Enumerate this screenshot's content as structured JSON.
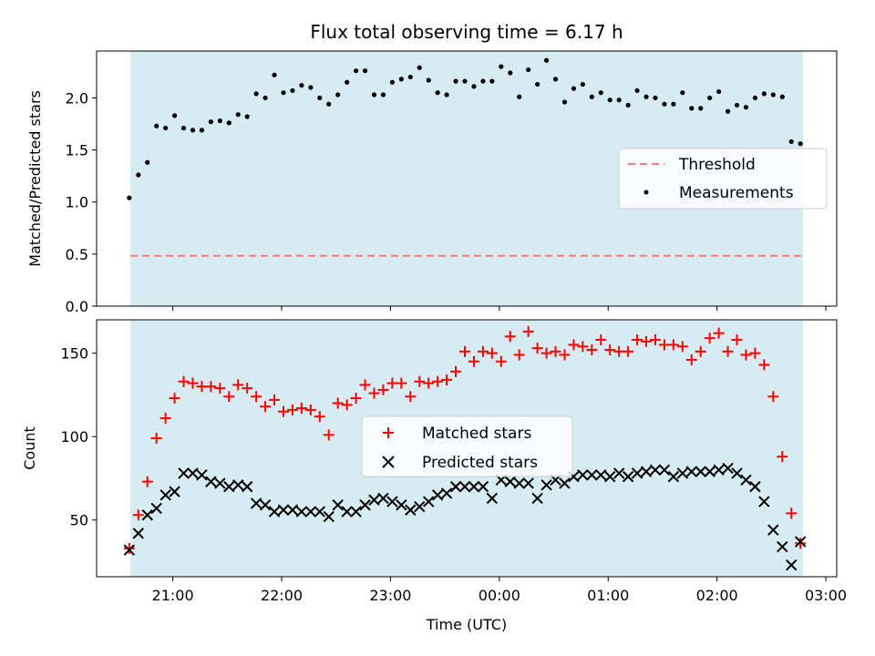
{
  "title": "Flux total observing time = 6.17 h",
  "chart_data": [
    {
      "type": "scatter",
      "panel": "top",
      "ylabel": "Matched/Predicted stars",
      "ylim": [
        0,
        2.45
      ],
      "yticks": [
        0.0,
        0.5,
        1.0,
        1.5,
        2.0
      ],
      "ytick_labels": [
        "0.0",
        "0.5",
        "1.0",
        "1.5",
        "2.0"
      ],
      "threshold": 0.5,
      "legend_placement": "center-right",
      "series": [
        {
          "name": "Threshold",
          "kind": "dashed-line",
          "color": "#f08080"
        },
        {
          "name": "Measurements",
          "kind": "points",
          "color": "#000000",
          "values": [
            1.04,
            1.26,
            1.38,
            1.73,
            1.71,
            1.83,
            1.71,
            1.69,
            1.69,
            1.77,
            1.78,
            1.76,
            1.84,
            1.82,
            2.04,
            2.0,
            2.22,
            2.05,
            2.07,
            2.12,
            2.1,
            2.0,
            1.94,
            2.03,
            2.15,
            2.26,
            2.26,
            2.03,
            2.03,
            2.15,
            2.18,
            2.2,
            2.29,
            2.17,
            2.05,
            2.03,
            2.16,
            2.16,
            2.11,
            2.16,
            2.16,
            2.3,
            2.24,
            2.01,
            2.27,
            2.13,
            2.36,
            2.18,
            1.96,
            2.09,
            2.13,
            2.01,
            2.05,
            1.98,
            1.98,
            1.93,
            2.07,
            2.01,
            2.0,
            1.94,
            1.94,
            2.05,
            1.9,
            1.9,
            2.0,
            2.06,
            1.87,
            1.93,
            1.91,
            2.0,
            2.04,
            2.03,
            2.01,
            1.58,
            1.56
          ]
        }
      ]
    },
    {
      "type": "scatter",
      "panel": "bottom",
      "ylabel": "Count",
      "xlabel": "Time (UTC)",
      "ylim": [
        16,
        170
      ],
      "yticks": [
        50,
        100,
        150
      ],
      "ytick_labels": [
        "50",
        "100",
        "150"
      ],
      "xlim": [
        "20:18",
        "03:06"
      ],
      "xticks": [
        "21:00",
        "22:00",
        "23:00",
        "00:00",
        "01:00",
        "02:00",
        "03:00"
      ],
      "shaded_range": [
        "20:36",
        "02:46"
      ],
      "legend_placement": "center",
      "x": [
        0,
        5,
        10,
        15,
        20,
        25,
        30,
        35,
        40,
        45,
        50,
        55,
        60,
        65,
        70,
        75,
        80,
        85,
        90,
        95,
        100,
        105,
        110,
        115,
        120,
        125,
        130,
        135,
        140,
        145,
        150,
        155,
        160,
        165,
        170,
        175,
        180,
        185,
        190,
        195,
        200,
        205,
        210,
        215,
        220,
        225,
        230,
        235,
        240,
        245,
        250,
        255,
        260,
        265,
        270,
        275,
        280,
        285,
        290,
        295,
        300,
        305,
        310,
        315,
        320,
        325,
        330,
        335,
        340,
        345,
        350,
        355,
        360,
        365,
        370
      ],
      "x_units": "minutes after 20:36 UTC",
      "series": [
        {
          "name": "Matched stars",
          "marker": "+",
          "color": "#ff0000",
          "values": [
            33,
            53,
            73,
            99,
            111,
            123,
            133,
            132,
            130,
            130,
            129,
            124,
            131,
            129,
            124,
            118,
            122,
            115,
            116,
            117,
            116,
            112,
            101,
            120,
            119,
            123,
            131,
            126,
            128,
            132,
            132,
            124,
            133,
            132,
            133,
            134,
            139,
            151,
            145,
            151,
            150,
            145,
            160,
            149,
            163,
            153,
            150,
            151,
            149,
            155,
            154,
            152,
            158,
            152,
            151,
            151,
            158,
            157,
            158,
            155,
            155,
            154,
            146,
            151,
            159,
            162,
            151,
            158,
            149,
            150,
            143,
            124,
            88,
            54,
            36
          ]
        },
        {
          "name": "Predicted stars",
          "marker": "x",
          "color": "#000000",
          "values": [
            32,
            42,
            53,
            57,
            65,
            67,
            78,
            78,
            77,
            73,
            72,
            70,
            71,
            70,
            60,
            59,
            55,
            56,
            56,
            55,
            55,
            55,
            52,
            59,
            55,
            55,
            59,
            62,
            63,
            61,
            59,
            56,
            58,
            61,
            65,
            66,
            70,
            70,
            70,
            70,
            63,
            74,
            73,
            72,
            72,
            63,
            71,
            74,
            72,
            76,
            77,
            77,
            77,
            76,
            78,
            76,
            78,
            79,
            80,
            80,
            76,
            78,
            79,
            79,
            79,
            80,
            81,
            78,
            74,
            70,
            61,
            44,
            34,
            23,
            37
          ]
        }
      ]
    }
  ]
}
